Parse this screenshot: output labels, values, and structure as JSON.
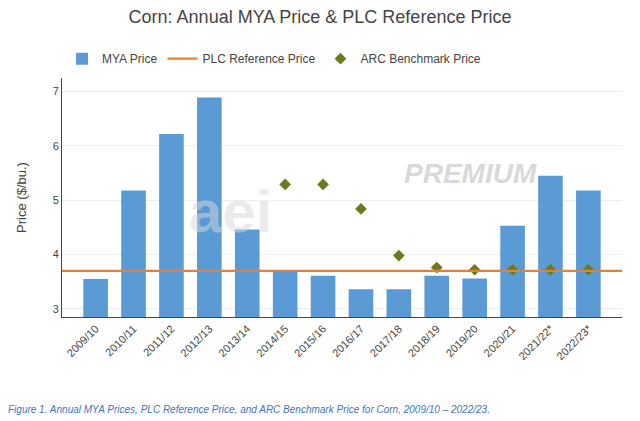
{
  "chart_data": {
    "type": "bar",
    "title": "Corn: Annual MYA Price & PLC Reference Price",
    "ylabel": "Price ($/bu.)",
    "categories": [
      "2009/10",
      "2010/11",
      "2011/12",
      "2012/13",
      "2013/14",
      "2014/15",
      "2015/16",
      "2016/17",
      "2017/18",
      "2018/19",
      "2019/20",
      "2020/21",
      "2021/22*",
      "2022/23*"
    ],
    "series": [
      {
        "name": "MYA Price",
        "type": "bar",
        "color": "#5B9BD5",
        "values": [
          3.55,
          5.18,
          6.22,
          6.89,
          4.46,
          3.7,
          3.61,
          3.36,
          3.36,
          3.61,
          3.56,
          4.53,
          5.45,
          5.18
        ]
      },
      {
        "name": "PLC Reference Price",
        "type": "hline",
        "color": "#ED7D31",
        "value": 3.7
      },
      {
        "name": "ARC Benchmark Price",
        "type": "scatter",
        "marker": "diamond",
        "color": "#6B7A1E",
        "values": [
          null,
          null,
          null,
          null,
          null,
          5.29,
          5.29,
          4.84,
          3.98,
          3.76,
          3.72,
          3.72,
          3.72,
          3.72
        ]
      }
    ],
    "ylim": [
      2.85,
      7.25
    ],
    "yticks": [
      3,
      4,
      5,
      6,
      7
    ],
    "grid": true,
    "legend": "top left",
    "annotations": [
      "PREMIUM",
      "aei",
      "Figure 1. Annual MYA Prices, PLC Reference Price, and ARC Benchmark Price for Corn, 2009/10 – 2022/23."
    ]
  }
}
